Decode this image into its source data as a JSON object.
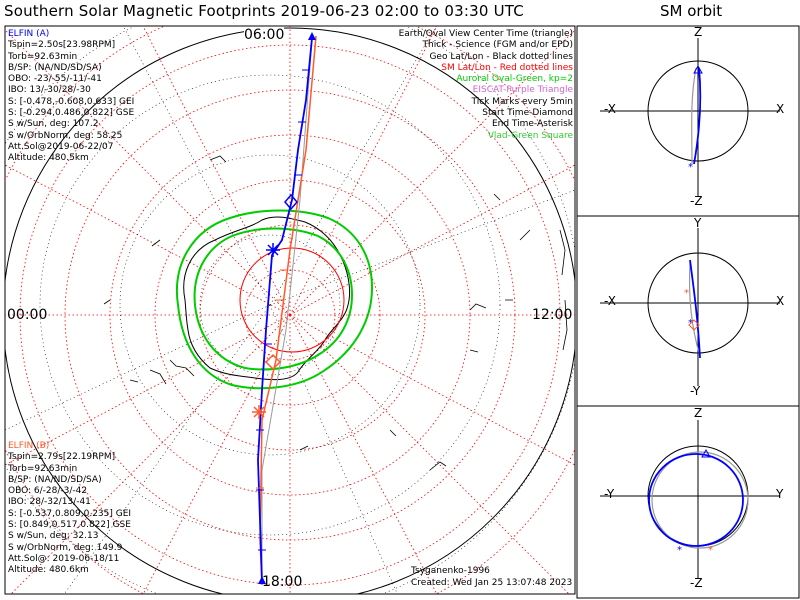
{
  "title": "Southern Solar Magnetic Footprints 2019-06-23 02:00 to 03:30 UTC",
  "sm_title": "SM orbit",
  "elfin_a": {
    "name": "ELFIN (A)",
    "color": "#0000ff",
    "lines": [
      "Tspin=2.50s[23.98RPM]",
      "Torb=92.63min",
      "B/SP: (NA/ND/SD/SA)",
      "OBO: -23/-55/-11/-41",
      "IBO: 13/-30/28/-30",
      "S: [-0.478,-0.608,0.633] GEI",
      "S: [-0.294,0.486,0.822] GSE",
      "S w/Sun, deg: 107.2",
      "S w/OrbNorm, deg: 58.25",
      "Att.Sol@2019-06-22/07",
      "Altitude: 480.5km"
    ]
  },
  "elfin_b": {
    "name": "ELFIN (B)",
    "color": "#ff5a2a",
    "lines": [
      "Tspin=2.79s[22.19RPM]",
      "Torb=92.63min",
      "B/SP: (NA/ND/SD/SA)",
      "OBO: 6/-28/-3/-42",
      "IBO: 28/-32/13/-41",
      "S: [-0.537,0.809,0.235] GEI",
      "S: [0.849,0.517,0.822] GSE",
      "S w/Sun, deg: 32.13",
      "S w/OrbNorm, deg: 149.9",
      "Att.Sol@: 2019-06-18/11",
      "Altitude: 480.6km"
    ]
  },
  "legend": [
    {
      "text": "Earth/Oval View Center Time (triangle)",
      "color": "#000000"
    },
    {
      "text": "Thick - Science (FGM and/or EPD)",
      "color": "#000000"
    },
    {
      "text": "Geo Lat/Lon - Black dotted lines",
      "color": "#000000"
    },
    {
      "text": "SM Lat/Lon - Red dotted lines",
      "color": "#ff0000"
    },
    {
      "text": "Auroral Oval-Green, kp=2",
      "color": "#00cc00"
    },
    {
      "text": "EISCAT-Purple Triangle",
      "color": "#cc66cc"
    },
    {
      "text": "Tick Marks every 5min",
      "color": "#000000"
    },
    {
      "text": "Start Time-Diamond",
      "color": "#000000"
    },
    {
      "text": "End Time-Asterisk",
      "color": "#000000"
    },
    {
      "text": "Vlad-Green Square",
      "color": "#33cc33"
    }
  ],
  "mlt_labels": {
    "top": "06:00",
    "left": "00:00",
    "right": "12:00",
    "bottom": "18:00"
  },
  "credit": "Tsyganenko-1996",
  "created": "Created: Wed Jan 25 13:07:48 2023",
  "orbit_panels": [
    {
      "up": "Z",
      "down": "-Z",
      "left": "-X",
      "right": "X"
    },
    {
      "up": "Y",
      "down": "-Y",
      "left": "-X",
      "right": "X"
    },
    {
      "up": "Z",
      "down": "-Z",
      "left": "-Y",
      "right": "Y"
    }
  ],
  "colors": {
    "sm_grid": "#ff0000",
    "geo_grid": "#000000",
    "oval": "#00cc00",
    "track_a": "#0000ff",
    "track_b": "#ff5a2a",
    "gray_track": "#999999"
  }
}
